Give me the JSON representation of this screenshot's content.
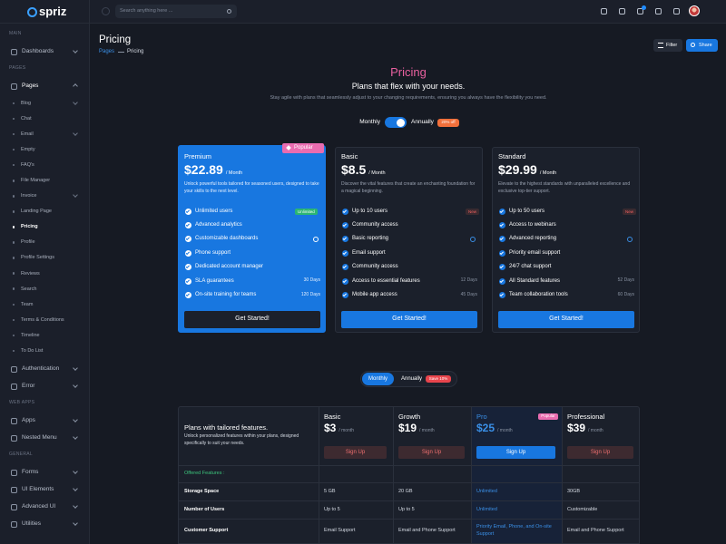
{
  "brand": "spriz",
  "search_placeholder": "Search anything here ...",
  "sidebar": [
    {
      "title": "MAIN",
      "items": [
        {
          "label": "Dashboards"
        }
      ]
    },
    {
      "title": "PAGES",
      "items": [
        {
          "label": "Pages",
          "children": [
            {
              "label": "Blog"
            },
            {
              "label": "Chat"
            },
            {
              "label": "Email"
            },
            {
              "label": "Empty"
            },
            {
              "label": "FAQ's"
            },
            {
              "label": "File Manager"
            },
            {
              "label": "Invoice"
            },
            {
              "label": "Landing Page"
            },
            {
              "label": "Pricing",
              "active": true
            },
            {
              "label": "Profile"
            },
            {
              "label": "Profile Settings"
            },
            {
              "label": "Reviews"
            },
            {
              "label": "Search"
            },
            {
              "label": "Team"
            },
            {
              "label": "Terms & Conditions"
            },
            {
              "label": "Timeline"
            },
            {
              "label": "To Do List"
            }
          ]
        },
        {
          "label": "Authentication"
        },
        {
          "label": "Error"
        }
      ]
    },
    {
      "title": "WEB APPS",
      "items": [
        {
          "label": "Apps"
        },
        {
          "label": "Nested Menu"
        }
      ]
    },
    {
      "title": "GENERAL",
      "items": [
        {
          "label": "Forms"
        },
        {
          "label": "UI Elements"
        },
        {
          "label": "Advanced UI"
        },
        {
          "label": "Utilities"
        }
      ]
    }
  ],
  "page_header": {
    "title": "Pricing",
    "breadcrumb": [
      "Pages",
      "Pricing"
    ],
    "buttons": [
      "Filter",
      "Share"
    ]
  },
  "pricing": {
    "heading": "Pricing",
    "subheading": "Plans that flex with your needs.",
    "description": "Stay agile with plans that seamlessly adjust to your changing requirements, ensuring you always have the flexibility you need.",
    "toggle": {
      "options": [
        "Monthly",
        "Annually"
      ],
      "badge": "20% off"
    },
    "plans": [
      {
        "name": "Premium",
        "price": "$22.89",
        "period": "/ Month",
        "featured": true,
        "badge": "Popular",
        "description": "Unlock powerful tools tailored for seasoned users, designed to take your skills to the next level.",
        "features": [
          {
            "label": "Unlimited users",
            "badge": "Unlimited"
          },
          {
            "label": "Advanced analytics"
          },
          {
            "label": "Customizable dashboards",
            "info": true
          },
          {
            "label": "Phone support"
          },
          {
            "label": "Dedicated account manager"
          },
          {
            "label": "SLA guarantees",
            "note": "30 Days"
          },
          {
            "label": "On-site training for teams",
            "note": "120 Days"
          }
        ],
        "button": "Get Started!"
      },
      {
        "name": "Basic",
        "price": "$8.5",
        "period": "/ Month",
        "description": "Discover the vital features that create an enchanting foundation for a magical beginning.",
        "features": [
          {
            "label": "Up to 10 users",
            "badge": "New"
          },
          {
            "label": "Community access"
          },
          {
            "label": "Basic reporting",
            "info": true
          },
          {
            "label": "Email support"
          },
          {
            "label": "Community access"
          },
          {
            "label": "Access to essential features",
            "note": "12 Days"
          },
          {
            "label": "Mobile app access",
            "note": "45 Days"
          }
        ],
        "button": "Get Started!"
      },
      {
        "name": "Standard",
        "price": "$29.99",
        "period": "/ Month",
        "description": "Elevate to the highest standards with unparalleled excellence and exclusive top-tier support.",
        "features": [
          {
            "label": "Up to 50 users",
            "badge": "New"
          },
          {
            "label": "Access to webinars"
          },
          {
            "label": "Advanced reporting",
            "info": true
          },
          {
            "label": "Priority email support"
          },
          {
            "label": "24/7 chat support"
          },
          {
            "label": "All Standard features",
            "note": "52 Days"
          },
          {
            "label": "Team collaboration tools",
            "note": "60 Days"
          }
        ],
        "button": "Get Started!"
      }
    ]
  },
  "comparison": {
    "toggle": {
      "options": [
        "Monthly",
        "Annually"
      ],
      "badge": "Save 10%"
    },
    "title": "Plans with tailored features.",
    "description": "Unlock personalized features within your plans, designed specifically to suit your needs.",
    "columns": [
      {
        "name": "Basic",
        "price": "$3",
        "period": "/ month",
        "button": "Sign Up"
      },
      {
        "name": "Growth",
        "price": "$19",
        "period": "/ month",
        "button": "Sign Up"
      },
      {
        "name": "Pro",
        "price": "$25",
        "period": "/ month",
        "button": "Sign Up",
        "featured": true,
        "badge": "Popular"
      },
      {
        "name": "Professional",
        "price": "$39",
        "period": "/ month",
        "button": "Sign Up"
      }
    ],
    "section": "Offered Features :",
    "rows": [
      [
        "Storage Space",
        "5 GB",
        "20 GB",
        "Unlimited",
        "30GB"
      ],
      [
        "Number of Users",
        "Up to 5",
        "Up to 5",
        "Unlimited",
        "Customizable"
      ],
      [
        "Customer Support",
        "Email Support",
        "Email and Phone Support",
        "Priority Email, Phone, and On-site Support",
        "Email and Phone Support"
      ]
    ]
  }
}
